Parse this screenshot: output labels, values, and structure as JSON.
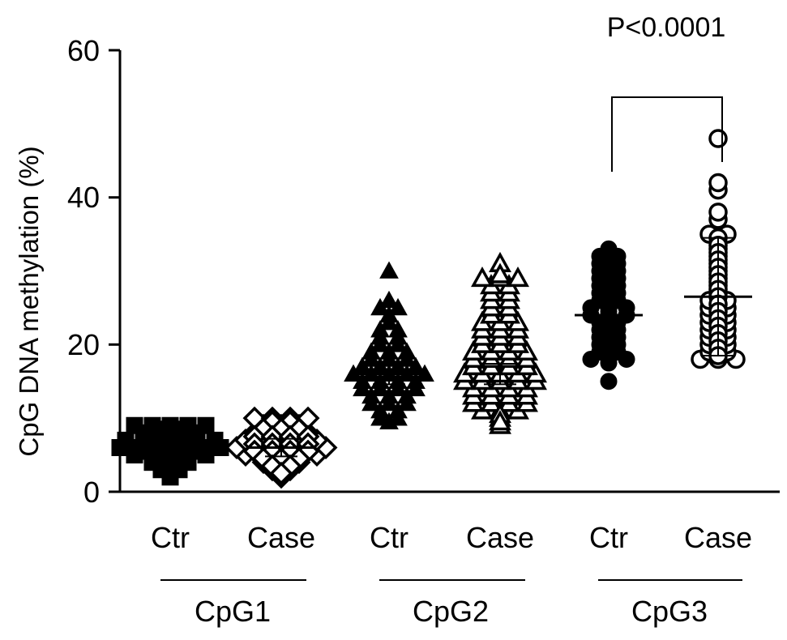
{
  "chart_data": {
    "type": "scatter",
    "ylabel": "CpG DNA methylation (%)",
    "ylim": [
      0,
      60
    ],
    "yticks": [
      0,
      20,
      40,
      60
    ],
    "grid": false,
    "categories": [
      "Ctr",
      "Case",
      "Ctr",
      "Case",
      "Ctr",
      "Case"
    ],
    "groups": [
      {
        "label": "CpG1",
        "categories": [
          0,
          1
        ]
      },
      {
        "label": "CpG2",
        "categories": [
          2,
          3
        ]
      },
      {
        "label": "CpG3",
        "categories": [
          4,
          5
        ]
      }
    ],
    "series": [
      {
        "category": 0,
        "group": "CpG1",
        "marker": "square",
        "fill": "filled",
        "mean": 6,
        "sd": 1.2,
        "values": [
          9,
          9,
          9,
          9,
          9,
          8.5,
          8.5,
          8,
          8,
          8,
          8,
          7.5,
          7.5,
          7.5,
          7,
          7,
          7,
          7,
          7,
          7,
          6.5,
          6.5,
          6.5,
          6.5,
          6,
          6,
          6,
          6,
          6,
          6,
          6,
          5.5,
          5.5,
          5.5,
          5.5,
          5,
          5,
          5,
          5,
          5,
          4.5,
          4.5,
          4.5,
          4,
          4,
          4,
          3.5,
          3.5,
          3,
          3,
          2.5,
          2
        ]
      },
      {
        "category": 1,
        "group": "CpG1",
        "marker": "diamond",
        "fill": "open",
        "mean": 6,
        "sd": 1.2,
        "values": [
          10,
          10,
          10,
          10,
          9.5,
          9.5,
          9,
          9,
          9,
          8.5,
          8.5,
          8.5,
          8,
          8,
          8,
          8,
          7.5,
          7.5,
          7.5,
          7.5,
          7,
          7,
          7,
          7,
          7,
          6.5,
          6.5,
          6.5,
          6.5,
          6,
          6,
          6,
          6,
          6,
          6,
          5.5,
          5.5,
          5.5,
          5.5,
          5,
          5,
          5,
          5,
          5,
          4.5,
          4.5,
          4.5,
          4,
          4,
          4,
          3.5,
          3.5,
          3,
          3,
          2.5,
          2
        ]
      },
      {
        "category": 2,
        "group": "CpG2",
        "marker": "triangle",
        "fill": "filled",
        "mean": 16,
        "sd": 1.4,
        "values": [
          30,
          26,
          25,
          25,
          24,
          23,
          22,
          22,
          21,
          21,
          20,
          20,
          19,
          19,
          19,
          18,
          18,
          18,
          17,
          17,
          17,
          17,
          16,
          16,
          16,
          16,
          16,
          15,
          15,
          15,
          15,
          14,
          14,
          14,
          14,
          13,
          13,
          13,
          12,
          12,
          12,
          11,
          11,
          10,
          10,
          9.5
        ]
      },
      {
        "category": 3,
        "group": "CpG2",
        "marker": "triangle",
        "fill": "open",
        "mean": 16,
        "sd": 1.4,
        "values": [
          31,
          29.5,
          29,
          29,
          29,
          28,
          28,
          27,
          27,
          26,
          26,
          25,
          25,
          24,
          24,
          23,
          23,
          23,
          22,
          22,
          22,
          21,
          21,
          21,
          20,
          20,
          20,
          19,
          19,
          19,
          19,
          18,
          18,
          18,
          18,
          17,
          17,
          17,
          17,
          16,
          16,
          16,
          16,
          16,
          15,
          15,
          15,
          15,
          15,
          14,
          14,
          14,
          14,
          13,
          13,
          13,
          13,
          12,
          12,
          12,
          12,
          11,
          11,
          11,
          10.5,
          10,
          9.5,
          9
        ]
      },
      {
        "category": 4,
        "group": "CpG3",
        "marker": "circle",
        "fill": "filled",
        "mean": 24,
        "sd": 4,
        "values": [
          33,
          32.5,
          32,
          32,
          31.5,
          31,
          31,
          30.5,
          30,
          30,
          29.5,
          29,
          29,
          28.5,
          28,
          28,
          27.5,
          27,
          27,
          26.5,
          26,
          26,
          25.5,
          25,
          25,
          25,
          24.5,
          24,
          24,
          24,
          23.5,
          23,
          23,
          22.5,
          22,
          22,
          21.5,
          21,
          21,
          20.5,
          20,
          20,
          19.5,
          19,
          19,
          18.5,
          18,
          18,
          18,
          17.5,
          15
        ]
      },
      {
        "category": 5,
        "group": "CpG3",
        "marker": "circle",
        "fill": "open",
        "mean": 26.5,
        "sd": 8,
        "values": [
          48,
          42,
          41,
          38,
          37,
          35,
          35,
          34.5,
          34,
          33.5,
          33,
          32.5,
          32,
          31.5,
          31,
          30.5,
          30,
          29.5,
          29,
          28.5,
          28,
          27.5,
          27,
          26.5,
          26,
          26,
          25.5,
          25,
          25,
          24.5,
          24,
          24,
          23.5,
          23,
          23,
          22.5,
          22,
          22,
          21.5,
          21,
          21,
          20.5,
          20,
          20,
          19.5,
          19,
          19,
          18.5,
          18,
          18,
          18
        ]
      }
    ],
    "annotations": [
      {
        "text": "P<0.0001",
        "between": [
          4,
          5
        ]
      }
    ]
  }
}
